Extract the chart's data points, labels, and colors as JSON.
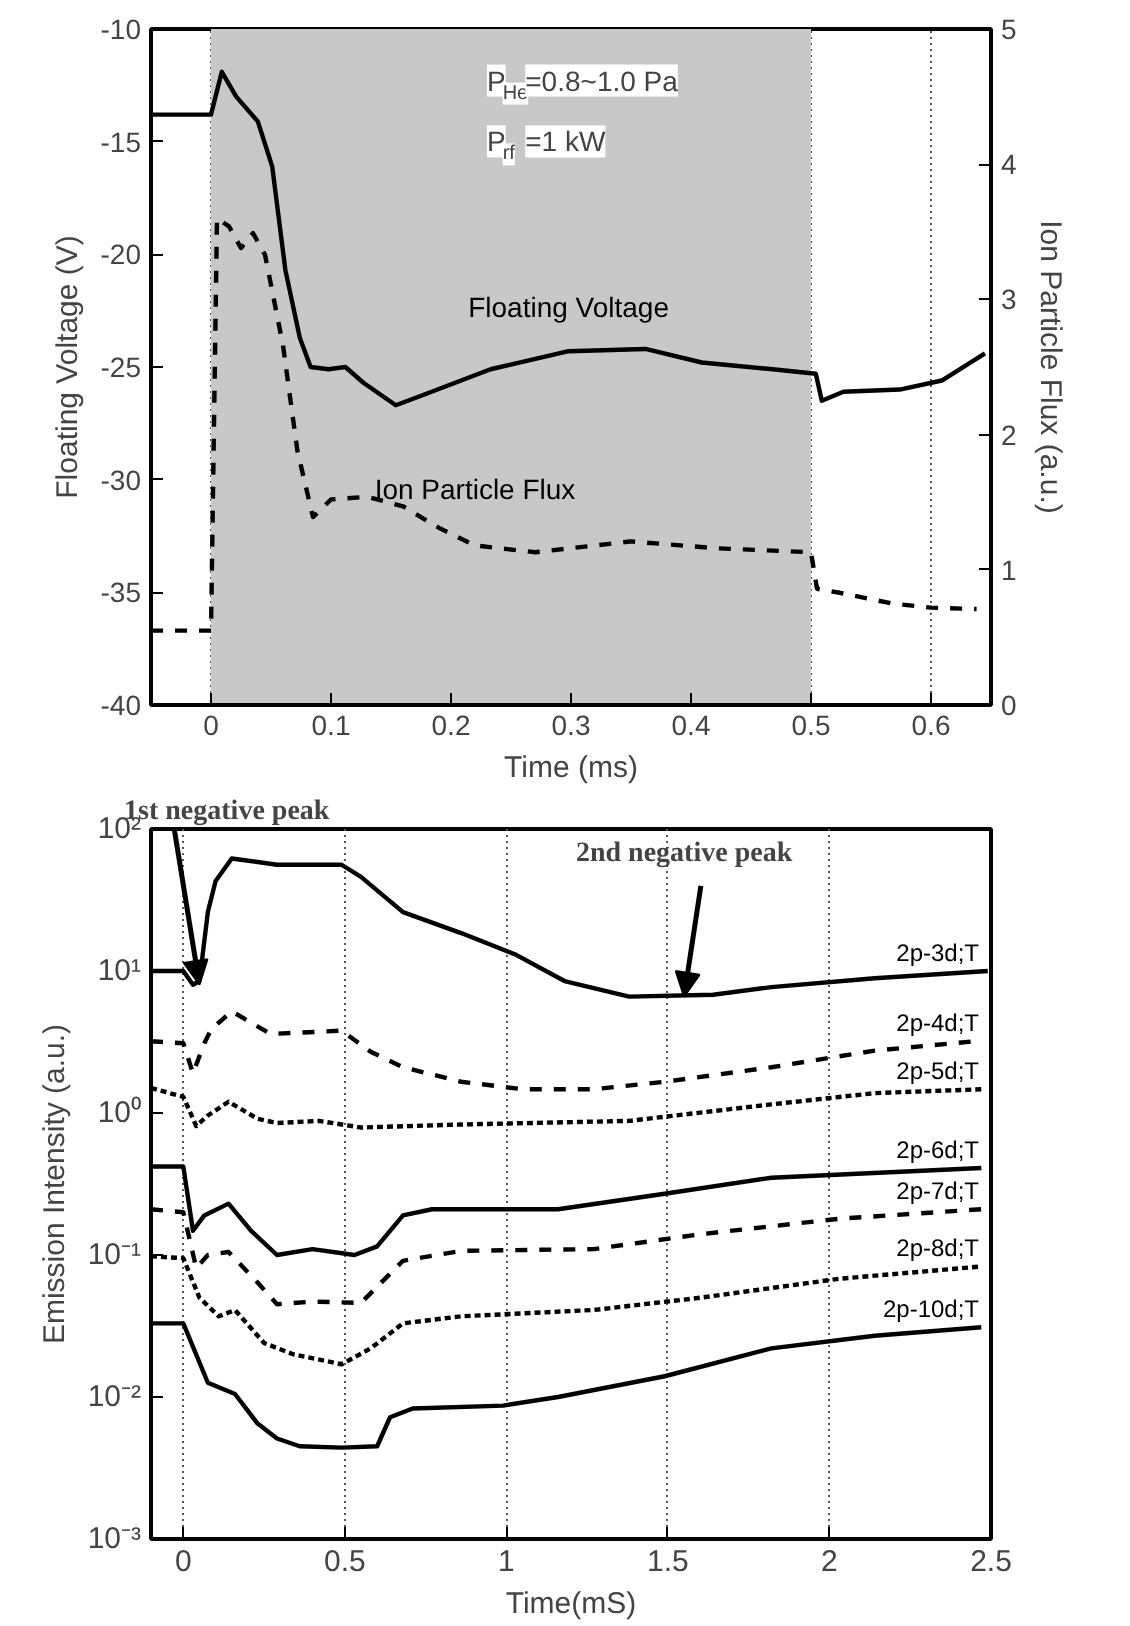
{
  "chart_data": [
    {
      "type": "line",
      "xlabel": "Time (ms)",
      "ylabel": "Floating Voltage (V)",
      "y2label": "Ion Particle Flux (a.u.)",
      "xlim": [
        -0.05,
        0.65
      ],
      "xticks": [
        0,
        0.1,
        0.2,
        0.3,
        0.4,
        0.5,
        0.6
      ],
      "ylim": [
        -40,
        -10
      ],
      "yticks": [
        -40,
        -35,
        -30,
        -25,
        -20,
        -15,
        -10
      ],
      "y2lim": [
        0,
        5
      ],
      "y2ticks": [
        0,
        1,
        2,
        3,
        4,
        5
      ],
      "grid": "x",
      "annotations": [
        "P$_{He}$=0.8~1.0 Pa",
        "P$_{rf}$=1 kW"
      ],
      "bands": [
        {
          "axis": "x",
          "from": 0,
          "to": 0.5,
          "color": "#c8c8c8"
        }
      ],
      "series": [
        {
          "name": "Floating Voltage",
          "color": "#000000",
          "line_style": "solid",
          "x": [
            -0.05,
            0,
            0.009,
            0.021,
            0.039,
            0.051,
            0.062,
            0.074,
            0.083,
            0.098,
            0.112,
            0.127,
            0.154,
            0.174,
            0.233,
            0.298,
            0.362,
            0.409,
            0.468,
            0.504,
            0.509,
            0.527,
            0.574,
            0.609,
            0.645
          ],
          "values": [
            -13.8,
            -13.8,
            -11.9,
            -13.0,
            -14.1,
            -16.1,
            -20.7,
            -23.7,
            -25.0,
            -25.1,
            -25.0,
            -25.7,
            -26.7,
            -26.3,
            -25.1,
            -24.3,
            -24.2,
            -24.8,
            -25.1,
            -25.3,
            -26.5,
            -26.1,
            -26.0,
            -25.6,
            -24.4
          ]
        },
        {
          "name": "Ion Particle Flux",
          "color": "#000000",
          "line_style": "dashed",
          "axis": "y2",
          "x": [
            -0.05,
            0,
            0.005,
            0.015,
            0.025,
            0.035,
            0.045,
            0.06,
            0.072,
            0.085,
            0.1,
            0.13,
            0.16,
            0.19,
            0.22,
            0.27,
            0.35,
            0.42,
            0.5,
            0.505,
            0.524,
            0.568,
            0.6,
            0.638
          ],
          "values": [
            0.55,
            0.55,
            3.6,
            3.54,
            3.38,
            3.49,
            3.33,
            2.66,
            1.88,
            1.39,
            1.52,
            1.54,
            1.47,
            1.31,
            1.18,
            1.13,
            1.21,
            1.16,
            1.13,
            0.86,
            0.83,
            0.75,
            0.72,
            0.71
          ]
        }
      ]
    },
    {
      "type": "line",
      "xlabel": "Time(mS)",
      "ylabel": "Emission Intensity (a.u.)",
      "log": "y",
      "xlim": [
        -0.1,
        2.5
      ],
      "xticks": [
        0,
        0.5,
        1,
        1.5,
        2,
        2.5
      ],
      "ylim": [
        0.001,
        100
      ],
      "yticks": [
        {
          "value": 0.001,
          "label": "10⁻³"
        },
        {
          "value": 0.01,
          "label": "10⁻²"
        },
        {
          "value": 0.1,
          "label": "10⁻¹"
        },
        {
          "value": 1,
          "label": "10⁰"
        },
        {
          "value": 10,
          "label": "10¹"
        },
        {
          "value": 100,
          "label": "10²"
        }
      ],
      "grid": "x",
      "annotations": [
        {
          "text": "1st negative peak",
          "x": 0.05,
          "y": 8
        },
        {
          "text": "2nd negative peak",
          "x": 1.55,
          "y": 6.6
        }
      ],
      "series": [
        {
          "name": "2p-3d;T",
          "color": "#000000",
          "line_style": "solid",
          "x": [
            -0.1,
            0,
            0.03,
            0.05,
            0.076,
            0.1,
            0.15,
            0.29,
            0.49,
            0.55,
            0.68,
            0.86,
            1.03,
            1.18,
            1.38,
            1.64,
            1.82,
            2.14,
            2.49
          ],
          "values": [
            10,
            10,
            8.0,
            8.5,
            26,
            43,
            62,
            56,
            56,
            46,
            26,
            18.5,
            13,
            8.5,
            6.6,
            6.8,
            7.7,
            8.9,
            10
          ]
        },
        {
          "name": "2p-4d;T",
          "color": "#000000",
          "line_style": "dashed",
          "x": [
            -0.1,
            0,
            0.03,
            0.065,
            0.087,
            0.15,
            0.27,
            0.49,
            0.58,
            0.68,
            0.86,
            1.05,
            1.27,
            1.49,
            1.82,
            2.14,
            2.45
          ],
          "values": [
            3.2,
            3.1,
            1.9,
            3.1,
            3.9,
            5.2,
            3.6,
            3.8,
            2.7,
            2.1,
            1.66,
            1.47,
            1.47,
            1.66,
            2.1,
            2.75,
            3.2
          ]
        },
        {
          "name": "2p-5d;T",
          "color": "#000000",
          "line_style": "dotted",
          "x": [
            -0.1,
            0,
            0.04,
            0.076,
            0.14,
            0.23,
            0.29,
            0.42,
            0.55,
            0.86,
            1.38,
            1.82,
            2.14,
            2.47
          ],
          "values": [
            1.5,
            1.3,
            0.81,
            0.96,
            1.2,
            0.91,
            0.85,
            0.88,
            0.79,
            0.83,
            0.88,
            1.15,
            1.38,
            1.47
          ]
        },
        {
          "name": "2p-6d;T",
          "color": "#000000",
          "line_style": "solid",
          "x": [
            -0.1,
            0,
            0.03,
            0.065,
            0.14,
            0.21,
            0.29,
            0.4,
            0.53,
            0.6,
            0.68,
            0.77,
            1.16,
            1.49,
            1.82,
            2.47
          ],
          "values": [
            0.42,
            0.42,
            0.148,
            0.19,
            0.23,
            0.148,
            0.1,
            0.11,
            0.1,
            0.115,
            0.19,
            0.21,
            0.21,
            0.27,
            0.35,
            0.41
          ]
        },
        {
          "name": "2p-7d;T",
          "color": "#000000",
          "line_style": "dashed",
          "x": [
            -0.1,
            0,
            0.04,
            0.076,
            0.14,
            0.23,
            0.29,
            0.4,
            0.55,
            0.68,
            0.86,
            1.27,
            1.6,
            2.03,
            2.47
          ],
          "values": [
            0.21,
            0.2,
            0.081,
            0.1,
            0.105,
            0.064,
            0.045,
            0.047,
            0.046,
            0.091,
            0.107,
            0.11,
            0.14,
            0.18,
            0.21
          ]
        },
        {
          "name": "2p-8d;T",
          "color": "#000000",
          "line_style": "dotted",
          "x": [
            -0.1,
            0,
            0.05,
            0.11,
            0.16,
            0.25,
            0.34,
            0.49,
            0.58,
            0.68,
            0.86,
            1.27,
            1.6,
            2.03,
            2.47
          ],
          "values": [
            0.098,
            0.095,
            0.05,
            0.037,
            0.041,
            0.024,
            0.02,
            0.017,
            0.022,
            0.033,
            0.037,
            0.041,
            0.05,
            0.068,
            0.083
          ]
        },
        {
          "name": "2p-10d;T",
          "color": "#000000",
          "line_style": "solid",
          "x": [
            -0.1,
            0,
            0.076,
            0.16,
            0.23,
            0.29,
            0.36,
            0.49,
            0.6,
            0.64,
            0.71,
            0.99,
            1.16,
            1.49,
            1.82,
            2.14,
            2.47
          ],
          "values": [
            0.033,
            0.033,
            0.0126,
            0.0105,
            0.0065,
            0.0051,
            0.0045,
            0.0044,
            0.0045,
            0.0072,
            0.0083,
            0.0087,
            0.01,
            0.014,
            0.022,
            0.027,
            0.031
          ]
        }
      ]
    }
  ]
}
